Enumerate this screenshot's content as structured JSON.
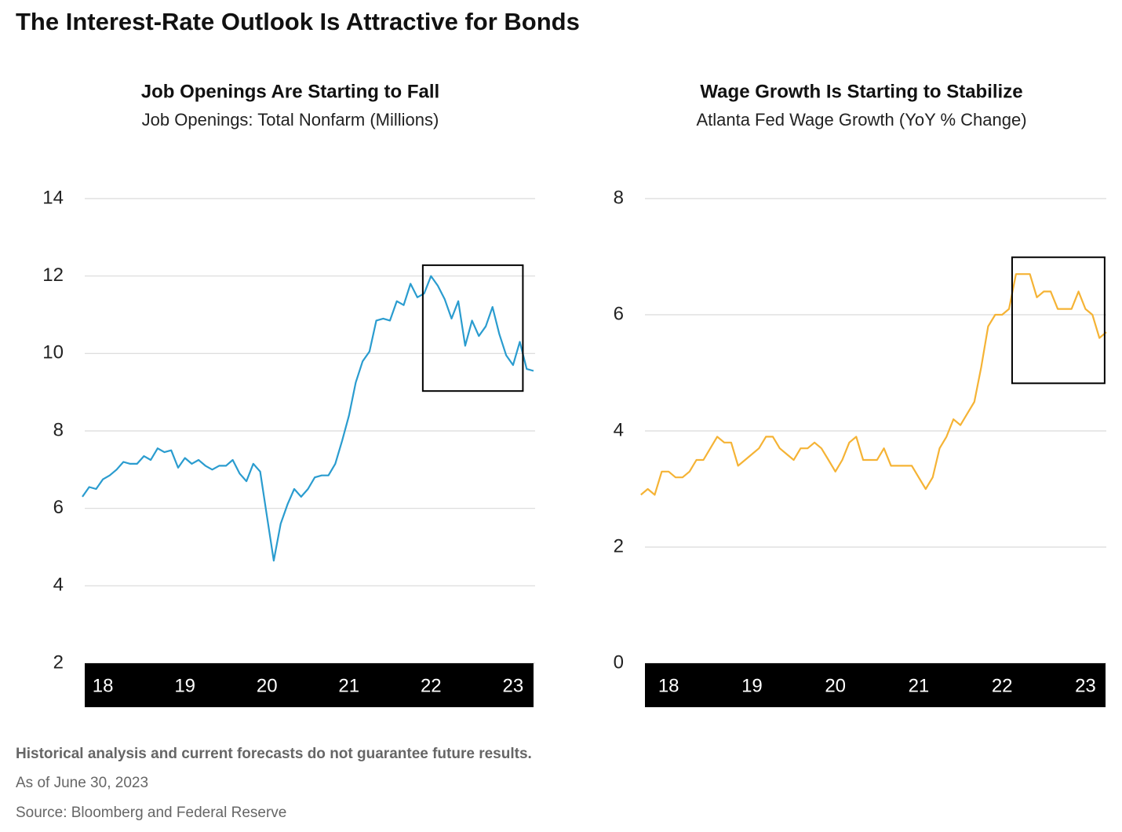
{
  "title": "The Interest-Rate Outlook Is Attractive for Bonds",
  "notes": [
    "Historical analysis and current forecasts do not guarantee future results.",
    "As of June 30, 2023",
    "Source: Bloomberg and Federal Reserve"
  ],
  "chart_data": [
    {
      "type": "line",
      "title": "Job Openings Are Starting to Fall",
      "subtitle": "Job Openings: Total Nonfarm (Millions)",
      "color": "#2a9ccf",
      "x": [
        17.75,
        17.833,
        17.917,
        18,
        18.083,
        18.167,
        18.25,
        18.333,
        18.417,
        18.5,
        18.583,
        18.667,
        18.75,
        18.833,
        18.917,
        19,
        19.083,
        19.167,
        19.25,
        19.333,
        19.417,
        19.5,
        19.583,
        19.667,
        19.75,
        19.833,
        19.917,
        20,
        20.083,
        20.167,
        20.25,
        20.333,
        20.417,
        20.5,
        20.583,
        20.667,
        20.75,
        20.833,
        20.917,
        21,
        21.083,
        21.167,
        21.25,
        21.333,
        21.417,
        21.5,
        21.583,
        21.667,
        21.75,
        21.833,
        21.917,
        22,
        22.083,
        22.167,
        22.25,
        22.333,
        22.417,
        22.5,
        22.583,
        22.667,
        22.75,
        22.833,
        22.917,
        23,
        23.083,
        23.167,
        23.25
      ],
      "values": [
        6.3,
        6.55,
        6.5,
        6.75,
        6.85,
        7.0,
        7.2,
        7.15,
        7.15,
        7.35,
        7.25,
        7.55,
        7.45,
        7.5,
        7.05,
        7.3,
        7.15,
        7.25,
        7.1,
        7.0,
        7.1,
        7.1,
        7.25,
        6.9,
        6.7,
        7.15,
        6.95,
        5.8,
        4.65,
        5.6,
        6.1,
        6.5,
        6.3,
        6.5,
        6.8,
        6.85,
        6.85,
        7.15,
        7.75,
        8.4,
        9.25,
        9.8,
        10.05,
        10.85,
        10.9,
        10.85,
        11.35,
        11.25,
        11.8,
        11.45,
        11.55,
        12.0,
        11.75,
        11.4,
        10.9,
        11.35,
        10.2,
        10.85,
        10.45,
        10.7,
        11.2,
        10.5,
        9.95,
        9.7,
        10.3,
        9.6,
        9.55
      ],
      "xlim": [
        17.75,
        23.25
      ],
      "xticks": [
        18,
        19,
        20,
        21,
        22,
        23
      ],
      "ylim": [
        2,
        14
      ],
      "yticks": [
        2,
        4,
        6,
        8,
        10,
        12,
        14
      ],
      "grid": true,
      "highlight": {
        "x": [
          21.9,
          23.12
        ],
        "y": [
          9.03,
          12.28
        ]
      }
    },
    {
      "type": "line",
      "title": "Wage Growth Is Starting to Stabilize",
      "subtitle": "Atlanta Fed Wage Growth (YoY % Change)",
      "color": "#f5b335",
      "x": [
        17.667,
        17.75,
        17.833,
        17.917,
        18,
        18.083,
        18.167,
        18.25,
        18.333,
        18.417,
        18.5,
        18.583,
        18.667,
        18.75,
        18.833,
        18.917,
        19,
        19.083,
        19.167,
        19.25,
        19.333,
        19.417,
        19.5,
        19.583,
        19.667,
        19.75,
        19.833,
        19.917,
        20,
        20.083,
        20.167,
        20.25,
        20.333,
        20.417,
        20.5,
        20.583,
        20.667,
        20.75,
        20.833,
        20.917,
        21,
        21.083,
        21.167,
        21.25,
        21.333,
        21.417,
        21.5,
        21.583,
        21.667,
        21.75,
        21.833,
        21.917,
        22,
        22.083,
        22.167,
        22.25,
        22.333,
        22.417,
        22.5,
        22.583,
        22.667,
        22.75,
        22.833,
        22.917,
        23,
        23.083,
        23.167,
        23.25
      ],
      "values": [
        2.9,
        3.0,
        2.9,
        3.3,
        3.3,
        3.2,
        3.2,
        3.3,
        3.5,
        3.5,
        3.7,
        3.9,
        3.8,
        3.8,
        3.4,
        3.5,
        3.6,
        3.7,
        3.9,
        3.9,
        3.7,
        3.6,
        3.5,
        3.7,
        3.7,
        3.8,
        3.7,
        3.5,
        3.3,
        3.5,
        3.8,
        3.9,
        3.5,
        3.5,
        3.5,
        3.7,
        3.4,
        3.4,
        3.4,
        3.4,
        3.2,
        3.0,
        3.2,
        3.7,
        3.9,
        4.2,
        4.1,
        4.3,
        4.5,
        5.1,
        5.8,
        6.0,
        6.0,
        6.1,
        6.7,
        6.7,
        6.7,
        6.3,
        6.4,
        6.4,
        6.1,
        6.1,
        6.1,
        6.4,
        6.1,
        6.0,
        5.6,
        5.7
      ],
      "xlim": [
        17.65,
        23.25
      ],
      "xticks": [
        18,
        19,
        20,
        21,
        22,
        23
      ],
      "ylim": [
        0,
        8
      ],
      "yticks": [
        0,
        2,
        4,
        6,
        8
      ],
      "grid": true,
      "highlight": {
        "x": [
          22.12,
          23.23
        ],
        "y": [
          4.82,
          6.99
        ]
      }
    }
  ]
}
